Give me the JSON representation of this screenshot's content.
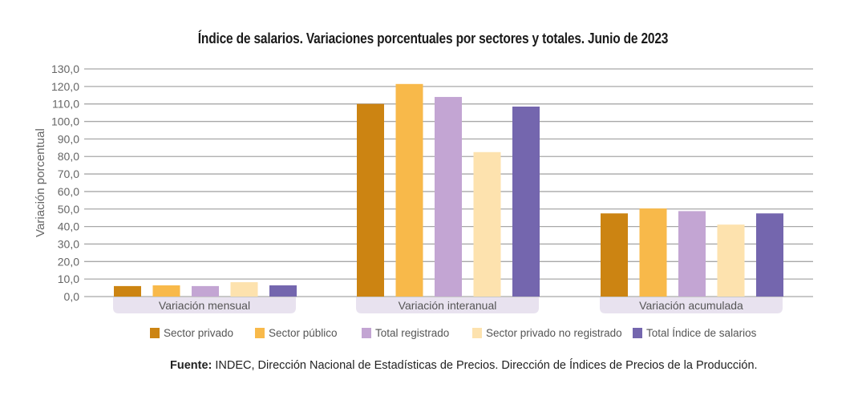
{
  "chart_data": {
    "type": "bar",
    "title": "Índice de salarios. Variaciones porcentuales por sectores y totales. Junio de 2023",
    "ylabel": "Variación porcentual",
    "xlabel": "",
    "ylim": [
      0,
      130
    ],
    "yticks": [
      "0,0",
      "10,0",
      "20,0",
      "30,0",
      "40,0",
      "50,0",
      "60,0",
      "70,0",
      "80,0",
      "90,0",
      "100,0",
      "110,0",
      "120,0",
      "130,0"
    ],
    "grid": true,
    "legend_position": "bottom",
    "categories": [
      "Variación mensual",
      "Variación interanual",
      "Variación acumulada"
    ],
    "series": [
      {
        "name": "Sector privado",
        "color": "#CC8412",
        "values": [
          6.0,
          110.0,
          47.5
        ]
      },
      {
        "name": "Sector público",
        "color": "#F8B94A",
        "values": [
          6.4,
          121.4,
          50.3
        ]
      },
      {
        "name": "Total registrado",
        "color": "#C3A5D3",
        "values": [
          6.0,
          114.0,
          48.8
        ]
      },
      {
        "name": "Sector privado no registrado",
        "color": "#FDE2AE",
        "values": [
          8.2,
          82.5,
          41.1
        ]
      },
      {
        "name": "Total Índice de salarios",
        "color": "#7466AE",
        "values": [
          6.4,
          108.5,
          47.5
        ]
      }
    ]
  },
  "source": {
    "label": "Fuente:",
    "text": " INDEC, Dirección Nacional de Estadísticas de Precios. Dirección de Índices de Precios de la Producción."
  }
}
